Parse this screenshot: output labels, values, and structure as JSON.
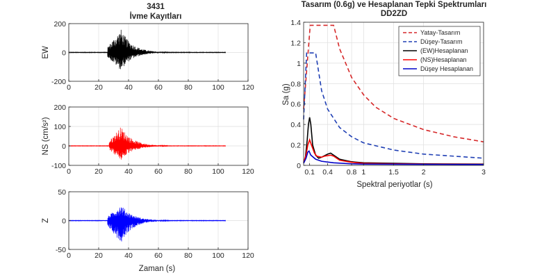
{
  "left_panel": {
    "title_line1": "3431",
    "title_line2": "İvme Kayıtları",
    "xlabel": "Zaman (s)"
  },
  "right_panel": {
    "title_line1": "Tasarım (0.6g) ve Hesaplanan Tepki Spektrumları",
    "title_line2": "DD2ZD",
    "xlabel": "Spektral periyotlar (s)",
    "ylabel": "Sa (g)"
  },
  "chart_data": [
    {
      "type": "line",
      "title": "3431 İvme Kayıtları",
      "ylabel": "EW",
      "xlabel": "",
      "xlim": [
        0,
        120
      ],
      "ylim": [
        -200,
        200
      ],
      "xticks": [
        0,
        20,
        40,
        60,
        80,
        100,
        120
      ],
      "yticks": [
        -200,
        0,
        200
      ],
      "grid": true,
      "color": "#000000",
      "record": {
        "duration": 105,
        "start": 26,
        "peak_time": 35,
        "peak_pos": 160,
        "peak_neg": -125
      }
    },
    {
      "type": "line",
      "title": "",
      "ylabel": "NS (cm/s²)",
      "xlabel": "",
      "xlim": [
        0,
        120
      ],
      "ylim": [
        -100,
        200
      ],
      "xticks": [
        0,
        20,
        40,
        60,
        80,
        100,
        120
      ],
      "yticks": [
        -100,
        0,
        100,
        200
      ],
      "grid": true,
      "color": "#ff0000",
      "record": {
        "duration": 105,
        "start": 27,
        "peak_time": 35,
        "peak_pos": 100,
        "peak_neg": -75
      }
    },
    {
      "type": "line",
      "title": "",
      "ylabel": "Z",
      "xlabel": "Zaman (s)",
      "xlim": [
        0,
        120
      ],
      "ylim": [
        -50,
        50
      ],
      "xticks": [
        0,
        20,
        40,
        60,
        80,
        100,
        120
      ],
      "yticks": [
        -50,
        0,
        50
      ],
      "grid": true,
      "color": "#0000ff",
      "record": {
        "duration": 105,
        "start": 26,
        "peak_time": 35,
        "peak_pos": 28,
        "peak_neg": -38
      }
    },
    {
      "type": "line",
      "title": "Tasarım (0.6g) ve Hesaplanan Tepki Spektrumları DD2ZD",
      "xlabel": "Spektral periyotlar (s)",
      "ylabel": "Sa (g)",
      "xlim": [
        0,
        3
      ],
      "ylim": [
        0,
        1.4
      ],
      "xticks": [
        0.1,
        0.4,
        0.8,
        1,
        1.5,
        2,
        3
      ],
      "xticklabels": [
        "0.1",
        "0.4",
        "0.8",
        "1",
        "1.5",
        "2",
        "3"
      ],
      "yticks": [
        0,
        0.2,
        0.4,
        0.6,
        0.8,
        1,
        1.2,
        1.4
      ],
      "grid": true,
      "legend": "top-right",
      "series": [
        {
          "name": "Yatay-Tasarım",
          "color": "#d62728",
          "dash": true,
          "points": [
            [
              0,
              0.55
            ],
            [
              0.11,
              1.37
            ],
            [
              0.5,
              1.37
            ],
            [
              0.6,
              1.14
            ],
            [
              0.8,
              0.86
            ],
            [
              1.0,
              0.69
            ],
            [
              1.2,
              0.57
            ],
            [
              1.5,
              0.46
            ],
            [
              2.0,
              0.35
            ],
            [
              2.5,
              0.28
            ],
            [
              3.0,
              0.23
            ]
          ]
        },
        {
          "name": "Düşey-Tasarım",
          "color": "#1f3fb4",
          "dash": true,
          "points": [
            [
              0,
              0.45
            ],
            [
              0.05,
              1.1
            ],
            [
              0.2,
              1.1
            ],
            [
              0.3,
              0.73
            ],
            [
              0.4,
              0.55
            ],
            [
              0.6,
              0.37
            ],
            [
              0.8,
              0.28
            ],
            [
              1.0,
              0.22
            ],
            [
              1.5,
              0.15
            ],
            [
              2.0,
              0.11
            ],
            [
              2.5,
              0.09
            ],
            [
              3.0,
              0.07
            ]
          ]
        },
        {
          "name": "(EW)Hesaplanan",
          "color": "#000000",
          "dash": false,
          "points": [
            [
              0,
              0.03
            ],
            [
              0.03,
              0.08
            ],
            [
              0.06,
              0.25
            ],
            [
              0.08,
              0.4
            ],
            [
              0.1,
              0.47
            ],
            [
              0.12,
              0.4
            ],
            [
              0.15,
              0.2
            ],
            [
              0.2,
              0.1
            ],
            [
              0.25,
              0.07
            ],
            [
              0.3,
              0.08
            ],
            [
              0.4,
              0.11
            ],
            [
              0.45,
              0.12
            ],
            [
              0.5,
              0.1
            ],
            [
              0.6,
              0.06
            ],
            [
              0.8,
              0.035
            ],
            [
              1.0,
              0.025
            ],
            [
              1.5,
              0.02
            ],
            [
              2.0,
              0.015
            ],
            [
              3.0,
              0.012
            ]
          ]
        },
        {
          "name": "(NS)Hesaplanan",
          "color": "#ff0000",
          "dash": false,
          "points": [
            [
              0,
              0.03
            ],
            [
              0.04,
              0.1
            ],
            [
              0.07,
              0.2
            ],
            [
              0.1,
              0.25
            ],
            [
              0.13,
              0.2
            ],
            [
              0.18,
              0.12
            ],
            [
              0.22,
              0.09
            ],
            [
              0.3,
              0.08
            ],
            [
              0.35,
              0.09
            ],
            [
              0.45,
              0.1
            ],
            [
              0.5,
              0.09
            ],
            [
              0.6,
              0.05
            ],
            [
              0.8,
              0.03
            ],
            [
              1.0,
              0.02
            ],
            [
              1.5,
              0.015
            ],
            [
              2.0,
              0.012
            ],
            [
              3.0,
              0.01
            ]
          ]
        },
        {
          "name": "Düşey Hesaplanan",
          "color": "#0000c8",
          "dash": false,
          "points": [
            [
              0,
              0.02
            ],
            [
              0.04,
              0.07
            ],
            [
              0.07,
              0.13
            ],
            [
              0.09,
              0.14
            ],
            [
              0.12,
              0.1
            ],
            [
              0.2,
              0.06
            ],
            [
              0.3,
              0.04
            ],
            [
              0.5,
              0.025
            ],
            [
              0.8,
              0.015
            ],
            [
              1.0,
              0.012
            ],
            [
              2.0,
              0.01
            ],
            [
              3.0,
              0.008
            ]
          ]
        }
      ]
    }
  ]
}
